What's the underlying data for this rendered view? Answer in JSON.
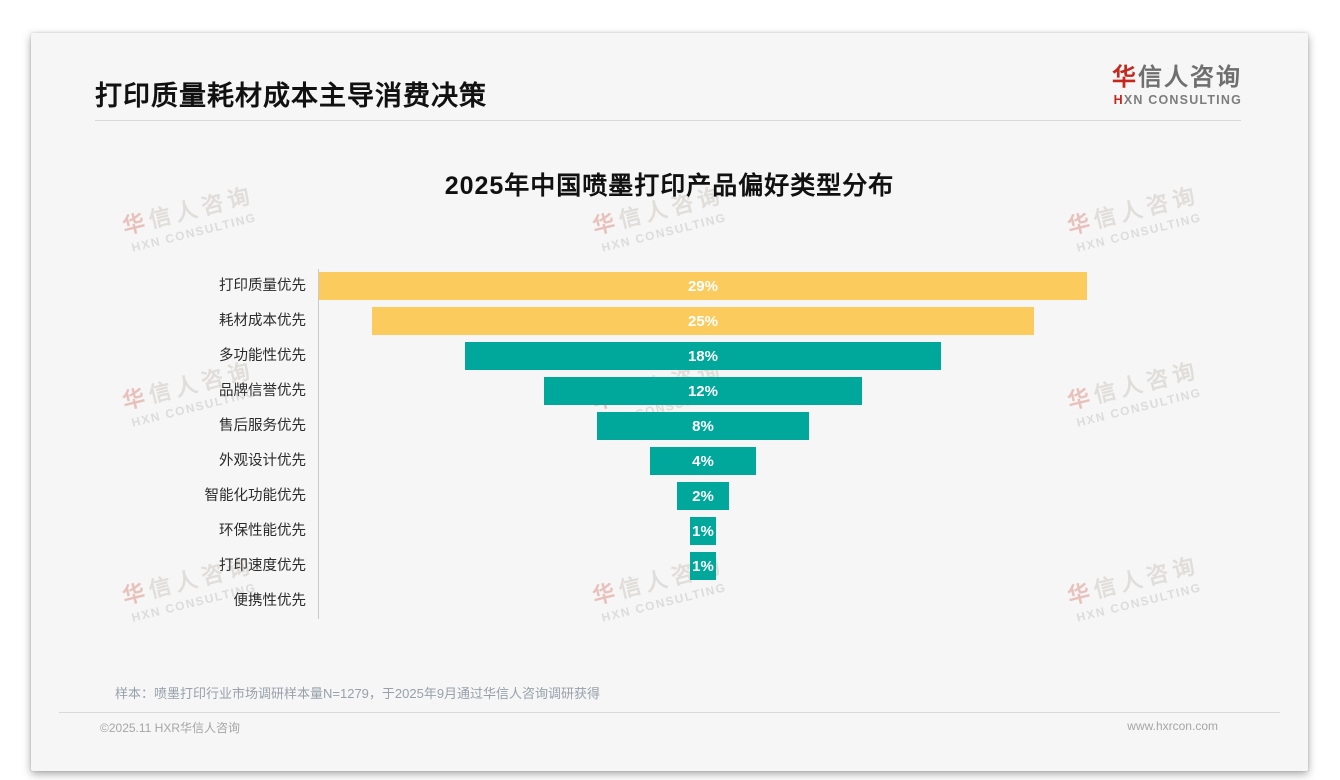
{
  "page": {
    "title": "打印质量耗材成本主导消费决策",
    "logo": {
      "zh_accent": "华",
      "zh_rest": "信人咨询",
      "en_accent": "H",
      "en_rest": "XN CONSULTING"
    },
    "watermark": {
      "zh_accent": "华",
      "zh_rest": "信人咨询",
      "en": "HXN CONSULTING"
    },
    "note": "样本：喷墨打印行业市场调研样本量N=1279，于2025年9月通过华信人咨询调研获得",
    "footer": {
      "left": "©2025.11 HXR华信人咨询",
      "right": "www.hxrcon.com"
    }
  },
  "chart_data": {
    "type": "bar",
    "subtype": "centered-funnel-horizontal",
    "title": "2025年中国喷墨打印产品偏好类型分布",
    "categories": [
      "打印质量优先",
      "耗材成本优先",
      "多功能性优先",
      "品牌信誉优先",
      "售后服务优先",
      "外观设计优先",
      "智能化功能优先",
      "环保性能优先",
      "打印速度优先",
      "便携性优先"
    ],
    "values": [
      29,
      25,
      18,
      12,
      8,
      4,
      2,
      1,
      1,
      0
    ],
    "value_labels": [
      "29%",
      "25%",
      "18%",
      "12%",
      "8%",
      "4%",
      "2%",
      "1%",
      "1%",
      ""
    ],
    "unit": "%",
    "xlim": [
      0,
      29
    ],
    "grid": false,
    "legend": false,
    "colors": {
      "highlight_bar": "#fbcb5e",
      "default_bar": "#00a89b",
      "bar_label": "#ffffff",
      "accent_red": "#c4271d"
    },
    "highlight_count": 2
  }
}
